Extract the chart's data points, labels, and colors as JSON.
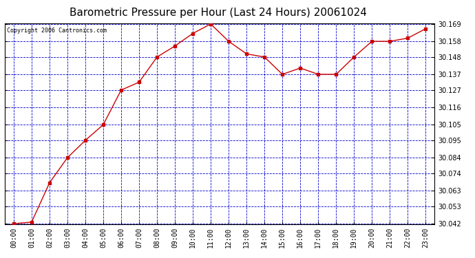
{
  "title": "Barometric Pressure per Hour (Last 24 Hours) 20061024",
  "copyright": "Copyright 2006 Cantronics.com",
  "x_labels": [
    "00:00",
    "01:00",
    "02:00",
    "03:00",
    "04:00",
    "05:00",
    "06:00",
    "07:00",
    "08:00",
    "09:00",
    "10:00",
    "11:00",
    "12:00",
    "13:00",
    "14:00",
    "15:00",
    "16:00",
    "17:00",
    "18:00",
    "19:00",
    "20:00",
    "21:00",
    "22:00",
    "23:00"
  ],
  "y_values": [
    30.042,
    30.043,
    30.068,
    30.084,
    30.095,
    30.105,
    30.127,
    30.132,
    30.148,
    30.155,
    30.163,
    30.169,
    30.158,
    30.15,
    30.148,
    30.137,
    30.141,
    30.137,
    30.137,
    30.148,
    30.158,
    30.158,
    30.16,
    30.166
  ],
  "ylim_min": 30.042,
  "ylim_max": 30.169,
  "y_ticks": [
    30.042,
    30.053,
    30.063,
    30.074,
    30.084,
    30.095,
    30.105,
    30.116,
    30.127,
    30.137,
    30.148,
    30.158,
    30.169
  ],
  "line_color": "#cc0000",
  "marker_color": "#000000",
  "bg_color": "#ffffff",
  "plot_bg_color": "#ffffff",
  "grid_color": "#0000cc",
  "title_fontsize": 11,
  "copyright_fontsize": 6,
  "tick_fontsize": 7
}
